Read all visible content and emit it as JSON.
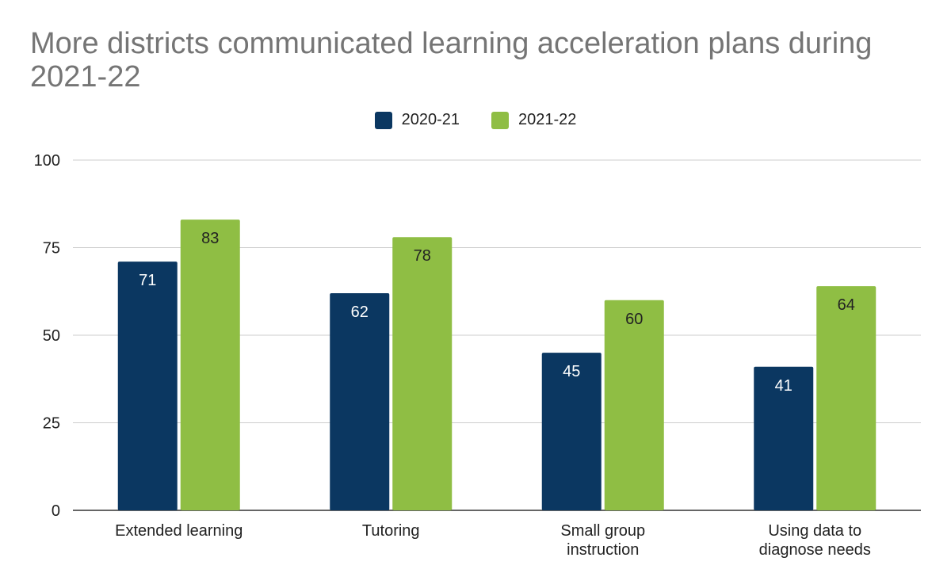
{
  "chart_data": {
    "type": "bar",
    "title": "More districts communicated learning acceleration plans during 2021-22",
    "categories": [
      "Extended learning",
      "Tutoring",
      "Small group instruction",
      "Using data to diagnose needs"
    ],
    "category_lines": [
      [
        "Extended learning"
      ],
      [
        "Tutoring"
      ],
      [
        "Small group",
        "instruction"
      ],
      [
        "Using data to",
        "diagnose needs"
      ]
    ],
    "series": [
      {
        "name": "2020-21",
        "values": [
          71,
          62,
          45,
          41
        ],
        "color": "#0b3761"
      },
      {
        "name": "2021-22",
        "values": [
          83,
          78,
          60,
          64
        ],
        "color": "#8fbe44"
      }
    ],
    "ylim": [
      0,
      100
    ],
    "yticks": [
      0,
      25,
      50,
      75,
      100
    ],
    "grid": true,
    "legend": "top"
  }
}
